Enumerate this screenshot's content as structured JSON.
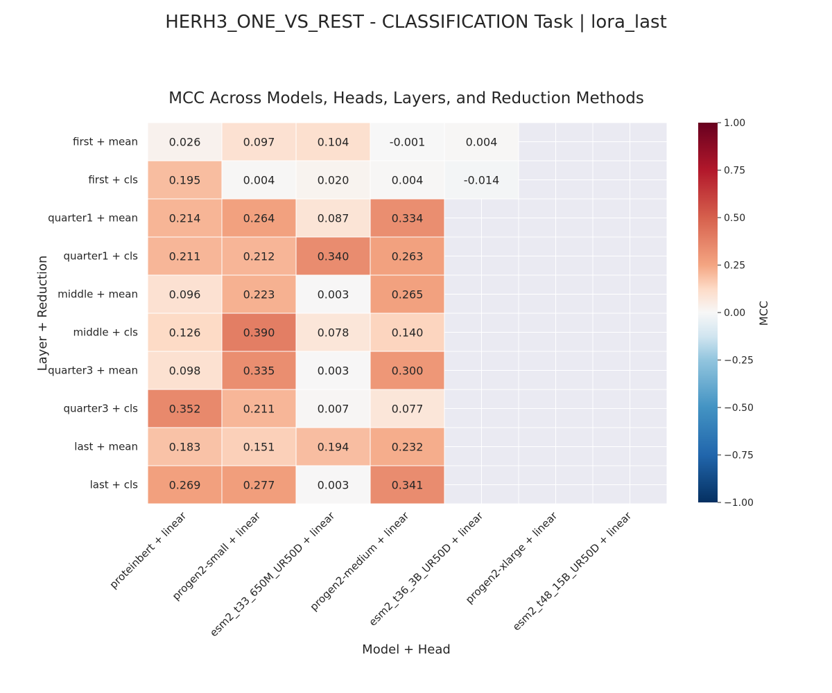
{
  "figure": {
    "suptitle": "HERH3_ONE_VS_REST - CLASSIFICATION Task | lora_last"
  },
  "chart_data": {
    "type": "heatmap",
    "title": "MCC Across Models, Heads, Layers, and Reduction Methods",
    "xlabel": "Model + Head",
    "ylabel": "Layer + Reduction",
    "columns": [
      "proteinbert + linear",
      "progen2-small + linear",
      "esm2_t33_650M_UR50D + linear",
      "progen2-medium + linear",
      "esm2_t36_3B_UR50D + linear",
      "progen2-xlarge + linear",
      "esm2_t48_15B_UR50D + linear"
    ],
    "rows": [
      "first + mean",
      "first + cls",
      "quarter1 + mean",
      "quarter1 + cls",
      "middle + mean",
      "middle + cls",
      "quarter3 + mean",
      "quarter3 + cls",
      "last + mean",
      "last + cls"
    ],
    "values": [
      [
        0.026,
        0.097,
        0.104,
        -0.001,
        0.004,
        null,
        null
      ],
      [
        0.195,
        0.004,
        0.02,
        0.004,
        -0.014,
        null,
        null
      ],
      [
        0.214,
        0.264,
        0.087,
        0.334,
        null,
        null,
        null
      ],
      [
        0.211,
        0.212,
        0.34,
        0.263,
        null,
        null,
        null
      ],
      [
        0.096,
        0.223,
        0.003,
        0.265,
        null,
        null,
        null
      ],
      [
        0.126,
        0.39,
        0.078,
        0.14,
        null,
        null,
        null
      ],
      [
        0.098,
        0.335,
        0.003,
        0.3,
        null,
        null,
        null
      ],
      [
        0.352,
        0.211,
        0.007,
        0.077,
        null,
        null,
        null
      ],
      [
        0.183,
        0.151,
        0.194,
        0.232,
        null,
        null,
        null
      ],
      [
        0.269,
        0.277,
        0.003,
        0.341,
        null,
        null,
        null
      ]
    ],
    "value_format": "0.000",
    "colormap": "RdBu_r",
    "missing_color": "#eaeaf2",
    "vmin": -1.0,
    "vmax": 1.0,
    "colorbar": {
      "label": "MCC",
      "ticks": [
        1.0,
        0.75,
        0.5,
        0.25,
        0.0,
        -0.25,
        -0.5,
        -0.75,
        -1.0
      ],
      "tick_labels": [
        "1.00",
        "0.75",
        "0.50",
        "0.25",
        "0.00",
        "−0.25",
        "−0.50",
        "−0.75",
        "−1.00"
      ]
    }
  }
}
